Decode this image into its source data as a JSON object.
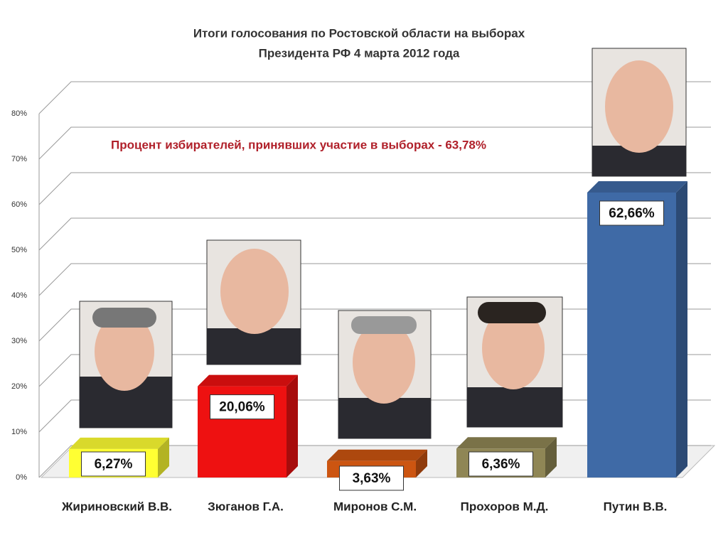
{
  "chart_data": {
    "type": "bar3d",
    "title": [
      "Итоги голосования по Ростовской области на выборах",
      "Президента РФ  4 марта 2012 года"
    ],
    "annotation": "Процент избирателей, принявших участие в выборах - 63,78%",
    "categories": [
      "Жириновский В.В.",
      "Зюганов Г.А.",
      "Миронов С.М.",
      "Прохоров М.Д.",
      "Путин В.В."
    ],
    "values": [
      6.27,
      20.06,
      3.63,
      6.36,
      62.66
    ],
    "value_labels": [
      "6,27%",
      "20,06%",
      "3,63%",
      "6,36%",
      "62,66%"
    ],
    "colors": [
      "#ffff33",
      "#ee1111",
      "#cc5511",
      "#8f8655",
      "#3f6aa6"
    ],
    "ylim": [
      0,
      80
    ],
    "yticks": [
      {
        "value": 0,
        "label": "0%"
      },
      {
        "value": 10,
        "label": "10%"
      },
      {
        "value": 20,
        "label": "20%"
      },
      {
        "value": 30,
        "label": "30%"
      },
      {
        "value": 40,
        "label": "40%"
      },
      {
        "value": 50,
        "label": "50%"
      },
      {
        "value": 60,
        "label": "60%"
      },
      {
        "value": 70,
        "label": "70%"
      },
      {
        "value": 80,
        "label": "80%"
      }
    ],
    "grid": true
  }
}
